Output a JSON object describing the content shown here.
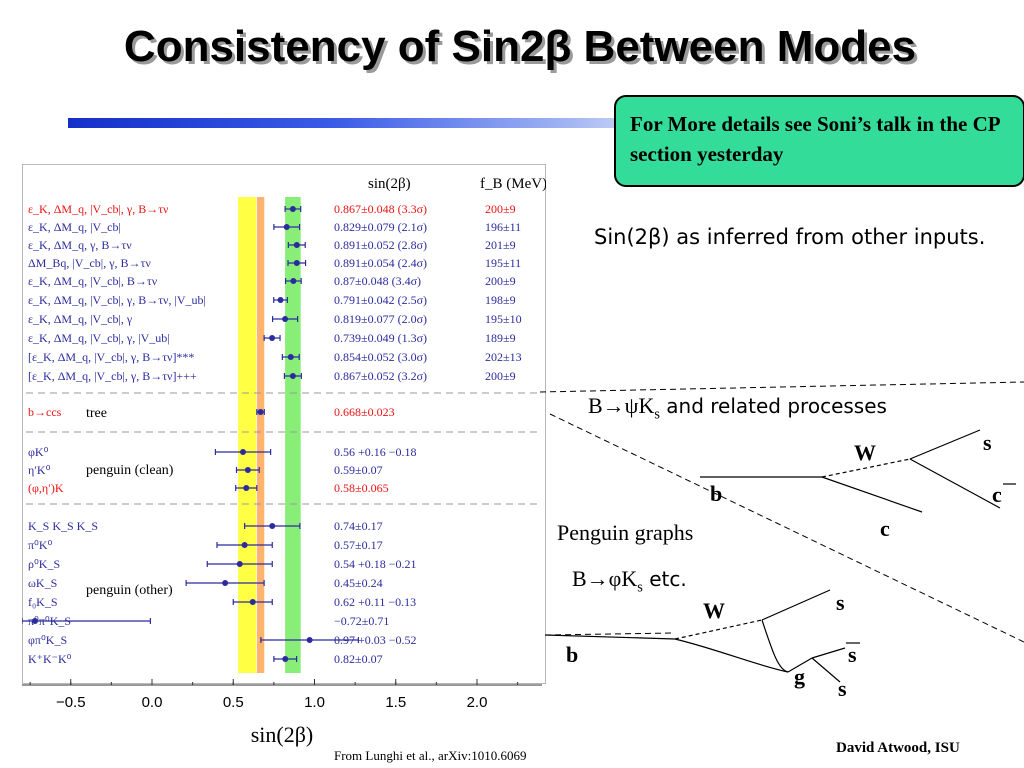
{
  "slide": {
    "title": "Consistency of Sin2β Between Modes",
    "callout": "For More details see Soni’s talk in the CP section yesterday",
    "inferred_text": "Sin(2β) as inferred from other inputs.",
    "section1": {
      "prefix": "B→ψK",
      "sub": "s",
      "suffix": " and related processes"
    },
    "penguin_label": "Penguin graphs",
    "section2": {
      "prefix": "B→φK",
      "sub": "s",
      "suffix": " etc."
    },
    "citation": "From Lunghi et al., arXiv:1010.6069",
    "author": "David Atwood, ISU"
  },
  "diagrams": {
    "tree": {
      "W": "W",
      "s": "s",
      "cbar": "c",
      "b": "b",
      "c": "c"
    },
    "penguin": {
      "W": "W",
      "s_top": "s",
      "sbar": "s",
      "b": "b",
      "g": "g",
      "s_bottom": "s"
    }
  },
  "chart_data": {
    "type": "scatter",
    "xlabel": "sin(2β)",
    "xlim": [
      -0.8,
      2.4
    ],
    "xticks": [
      -0.5,
      0.0,
      0.5,
      1.0,
      1.5,
      2.0
    ],
    "header_value": "sin(2β)",
    "header_fb": "f_B (MeV)",
    "bands": [
      {
        "center": 0.585,
        "half_width": 0.055,
        "color": "#ffff44"
      },
      {
        "center": 0.668,
        "half_width": 0.023,
        "color": "#ffb46e"
      },
      {
        "center": 0.867,
        "half_width": 0.048,
        "color": "#88ee77"
      }
    ],
    "groups": [
      {
        "label": "",
        "rows": [
          {
            "name": "ε_K, ΔM_q, |V_cb|, γ, B→τν",
            "value": 0.867,
            "err": 0.048,
            "text": "0.867±0.048 (3.3σ)",
            "fb": "200±9",
            "color": "#ee1111"
          },
          {
            "name": "ε_K, ΔM_q, |V_cb|",
            "value": 0.829,
            "err": 0.079,
            "text": "0.829±0.079 (2.1σ)",
            "fb": "196±11",
            "color": "#2b2b9e"
          },
          {
            "name": "ε_K, ΔM_q, γ, B→τν",
            "value": 0.891,
            "err": 0.052,
            "text": "0.891±0.052 (2.8σ)",
            "fb": "201±9",
            "color": "#2b2b9e"
          },
          {
            "name": "ΔM_Bq, |V_cb|, γ, B→τν",
            "value": 0.891,
            "err": 0.054,
            "text": "0.891±0.054 (2.4σ)",
            "fb": "195±11",
            "color": "#2b2b9e"
          },
          {
            "name": "ε_K, ΔM_q, |V_cb|, B→τν",
            "value": 0.87,
            "err": 0.048,
            "text": "0.87±0.048 (3.4σ)",
            "fb": "200±9",
            "color": "#2b2b9e"
          },
          {
            "name": "ε_K, ΔM_q, |V_cb|, γ, B→τν, |V_ub|",
            "value": 0.791,
            "err": 0.042,
            "text": "0.791±0.042 (2.5σ)",
            "fb": "198±9",
            "color": "#2b2b9e"
          },
          {
            "name": "ε_K, ΔM_q, |V_cb|, γ",
            "value": 0.819,
            "err": 0.077,
            "text": "0.819±0.077 (2.0σ)",
            "fb": "195±10",
            "color": "#2b2b9e"
          },
          {
            "name": "ε_K, ΔM_q, |V_cb|, γ, |V_ub|",
            "value": 0.739,
            "err": 0.049,
            "text": "0.739±0.049 (1.3σ)",
            "fb": "189±9",
            "color": "#2b2b9e"
          },
          {
            "name": "[ε_K, ΔM_q, |V_cb|, γ, B→τν]***",
            "value": 0.854,
            "err": 0.052,
            "text": "0.854±0.052 (3.0σ)",
            "fb": "202±13",
            "color": "#2b2b9e"
          },
          {
            "name": "[ε_K, ΔM_q, |V_cb|, γ, B→τν]+++",
            "value": 0.867,
            "err": 0.052,
            "text": "0.867±0.052 (3.2σ)",
            "fb": "200±9",
            "color": "#2b2b9e"
          }
        ]
      },
      {
        "label": "tree",
        "rows": [
          {
            "name": "b→ccs",
            "value": 0.668,
            "err": 0.023,
            "text": "0.668±0.023",
            "fb": "",
            "color": "#ee1111"
          }
        ]
      },
      {
        "label": "penguin (clean)",
        "rows": [
          {
            "name": "φK⁰",
            "value": 0.56,
            "err": 0.17,
            "text": "0.56 +0.16 −0.18",
            "fb": "",
            "color": "#2b2b9e"
          },
          {
            "name": "η′K⁰",
            "value": 0.59,
            "err": 0.07,
            "text": "0.59±0.07",
            "fb": "",
            "color": "#2b2b9e"
          },
          {
            "name": "(φ,η′)K",
            "value": 0.58,
            "err": 0.065,
            "text": "0.58±0.065",
            "fb": "",
            "color": "#ee1111"
          }
        ]
      },
      {
        "label": "penguin (other)",
        "rows": [
          {
            "name": "K_S K_S K_S",
            "value": 0.74,
            "err": 0.17,
            "text": "0.74±0.17",
            "fb": "",
            "color": "#2b2b9e"
          },
          {
            "name": "π⁰K⁰",
            "value": 0.57,
            "err": 0.17,
            "text": "0.57±0.17",
            "fb": "",
            "color": "#2b2b9e"
          },
          {
            "name": "ρ⁰K_S",
            "value": 0.54,
            "err": 0.2,
            "text": "0.54 +0.18 −0.21",
            "fb": "",
            "color": "#2b2b9e"
          },
          {
            "name": "ωK_S",
            "value": 0.45,
            "err": 0.24,
            "text": "0.45±0.24",
            "fb": "",
            "color": "#2b2b9e"
          },
          {
            "name": "f₀K_S",
            "value": 0.62,
            "err": 0.12,
            "text": "0.62 +0.11 −0.13",
            "fb": "",
            "color": "#2b2b9e"
          },
          {
            "name": "π⁰π⁰K_S",
            "value": -0.72,
            "err": 0.71,
            "text": "−0.72±0.71",
            "fb": "",
            "color": "#2b2b9e"
          },
          {
            "name": "φπ⁰K_S",
            "value": 0.97,
            "err": 0.3,
            "text": "0.97 +0.03 −0.52",
            "fb": "",
            "color": "#2b2b9e"
          },
          {
            "name": "K⁺K⁻K⁰",
            "value": 0.82,
            "err": 0.07,
            "text": "0.82±0.07",
            "fb": "",
            "color": "#2b2b9e"
          }
        ]
      }
    ]
  }
}
